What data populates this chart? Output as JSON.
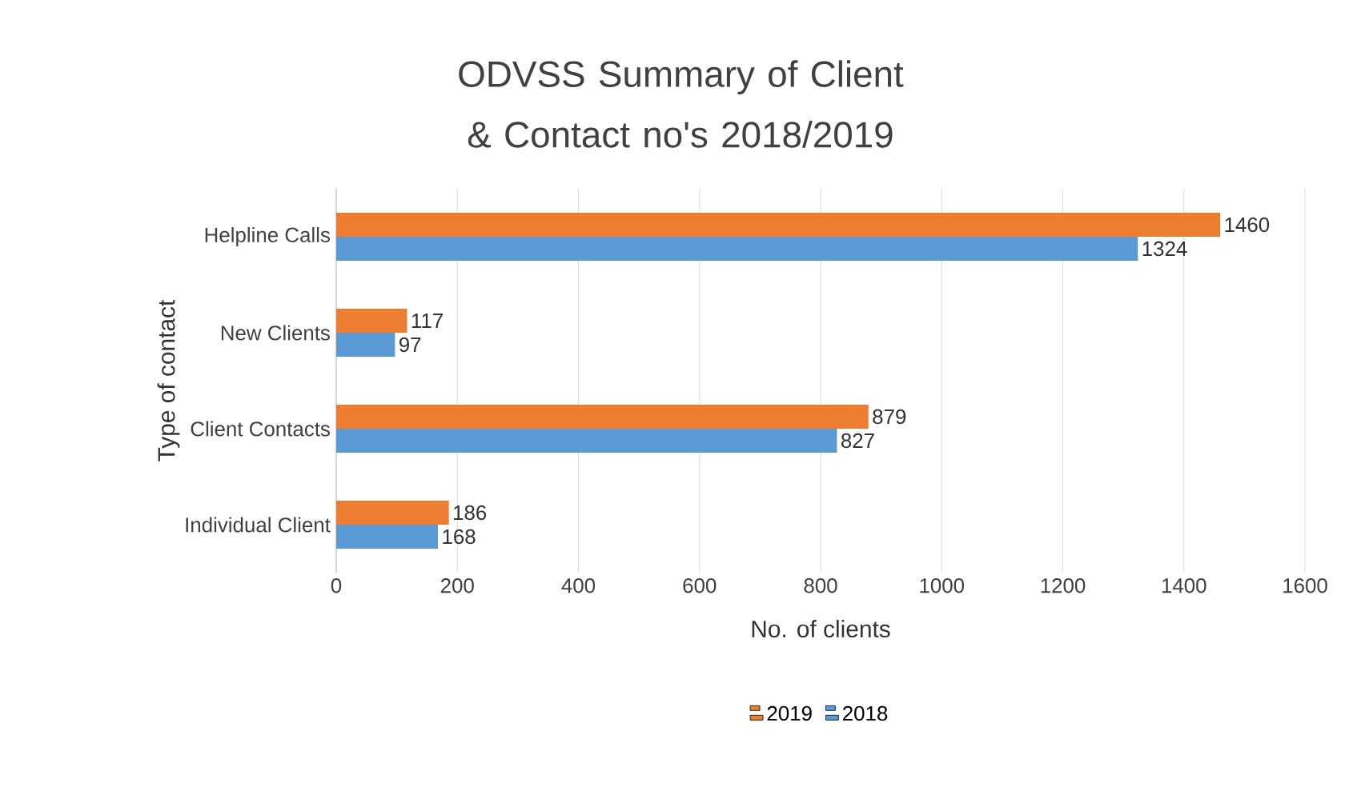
{
  "chart_data": {
    "type": "bar",
    "orientation": "horizontal",
    "title": "ODVSS Summary of Client & Contact no's 2018/2019",
    "xlabel": "No. of clients",
    "ylabel": "Type of contact",
    "categories": [
      "Helpline Calls",
      "New Clients",
      "Client Contacts",
      "Individual Client"
    ],
    "series": [
      {
        "name": "2019",
        "color": "#ed7d31",
        "values": [
          1460,
          117,
          879,
          186
        ]
      },
      {
        "name": "2018",
        "color": "#5b9bd5",
        "values": [
          1324,
          97,
          827,
          168
        ]
      }
    ],
    "xlim": [
      0,
      1600
    ],
    "xticks": [
      0,
      200,
      400,
      600,
      800,
      1000,
      1200,
      1400,
      1600
    ],
    "grid": "x",
    "legend": "bottom",
    "data_labels": true
  }
}
